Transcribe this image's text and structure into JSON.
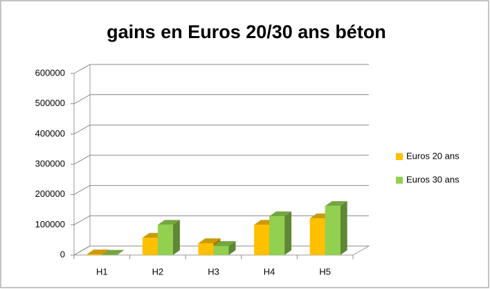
{
  "chart_data": {
    "type": "bar",
    "title": "gains en Euros 20/30 ans béton",
    "categories": [
      "H1",
      "H2",
      "H3",
      "H4",
      "H5"
    ],
    "series": [
      {
        "name": "Euros 20 ans",
        "color": "#ffc000",
        "values": [
          2000,
          57000,
          39000,
          100000,
          121000
        ]
      },
      {
        "name": "Euros 30 ans",
        "color": "#92d050",
        "values": [
          1000,
          100000,
          30000,
          128000,
          162000
        ]
      }
    ],
    "ylim": [
      0,
      600000
    ],
    "yticks": [
      0,
      100000,
      200000,
      300000,
      400000,
      500000,
      600000
    ],
    "grid": true,
    "legend": "right"
  }
}
